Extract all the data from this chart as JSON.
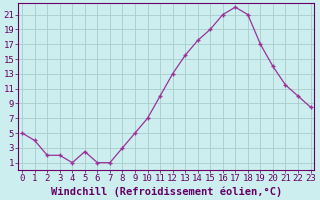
{
  "x": [
    0,
    1,
    2,
    3,
    4,
    5,
    6,
    7,
    8,
    9,
    10,
    11,
    12,
    13,
    14,
    15,
    16,
    17,
    18,
    19,
    20,
    21,
    22,
    23
  ],
  "y": [
    5,
    4,
    2,
    2,
    1,
    2.5,
    1,
    1,
    3,
    5,
    7,
    10,
    13,
    15.5,
    17.5,
    19,
    21,
    22,
    21,
    17,
    14,
    11.5,
    10,
    8.5
  ],
  "line_color": "#993399",
  "marker": "+",
  "bg_color": "#cceeee",
  "grid_color": "#aacccc",
  "xlabel": "Windchill (Refroidissement éolien,°C)",
  "yticks": [
    1,
    3,
    5,
    7,
    9,
    11,
    13,
    15,
    17,
    19,
    21
  ],
  "xticks": [
    0,
    1,
    2,
    3,
    4,
    5,
    6,
    7,
    8,
    9,
    10,
    11,
    12,
    13,
    14,
    15,
    16,
    17,
    18,
    19,
    20,
    21,
    22,
    23
  ],
  "ylim": [
    0,
    22.5
  ],
  "xlim": [
    -0.3,
    23.3
  ],
  "xlabel_fontsize": 7.5,
  "tick_fontsize": 6.5,
  "label_color": "#660066",
  "tick_color": "#660066",
  "spine_color": "#660066"
}
